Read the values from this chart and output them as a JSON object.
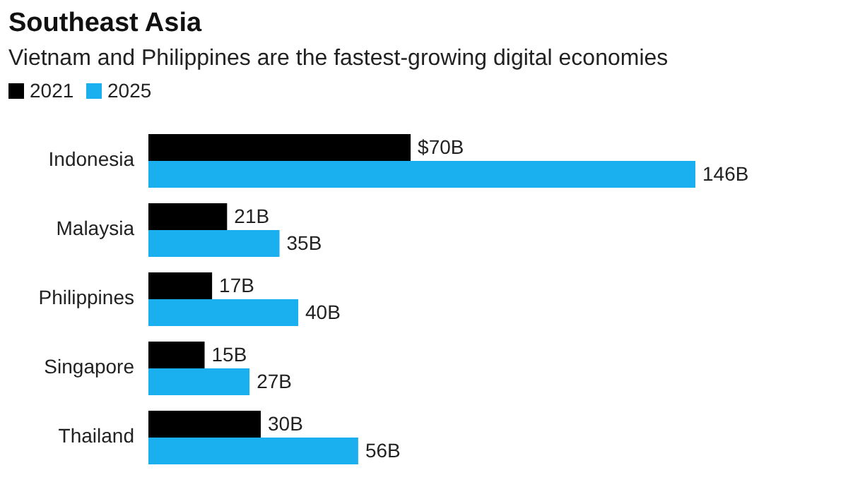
{
  "chart_data": {
    "type": "bar",
    "orientation": "horizontal",
    "title": "Southeast Asia",
    "subtitle": "Vietnam and Philippines are the fastest-growing digital economies",
    "categories": [
      "Indonesia",
      "Malaysia",
      "Philippines",
      "Singapore",
      "Thailand"
    ],
    "legend": "top left",
    "series": [
      {
        "name": "2021",
        "color": "#000000",
        "values": [
          70,
          21,
          17,
          15,
          30
        ],
        "value_labels": [
          "$70B",
          "21B",
          "17B",
          "15B",
          "30B"
        ]
      },
      {
        "name": "2025",
        "color": "#1ab0f0",
        "values": [
          146,
          35,
          40,
          27,
          56
        ],
        "value_labels": [
          "146B",
          "35B",
          "40B",
          "27B",
          "56B"
        ]
      }
    ]
  }
}
